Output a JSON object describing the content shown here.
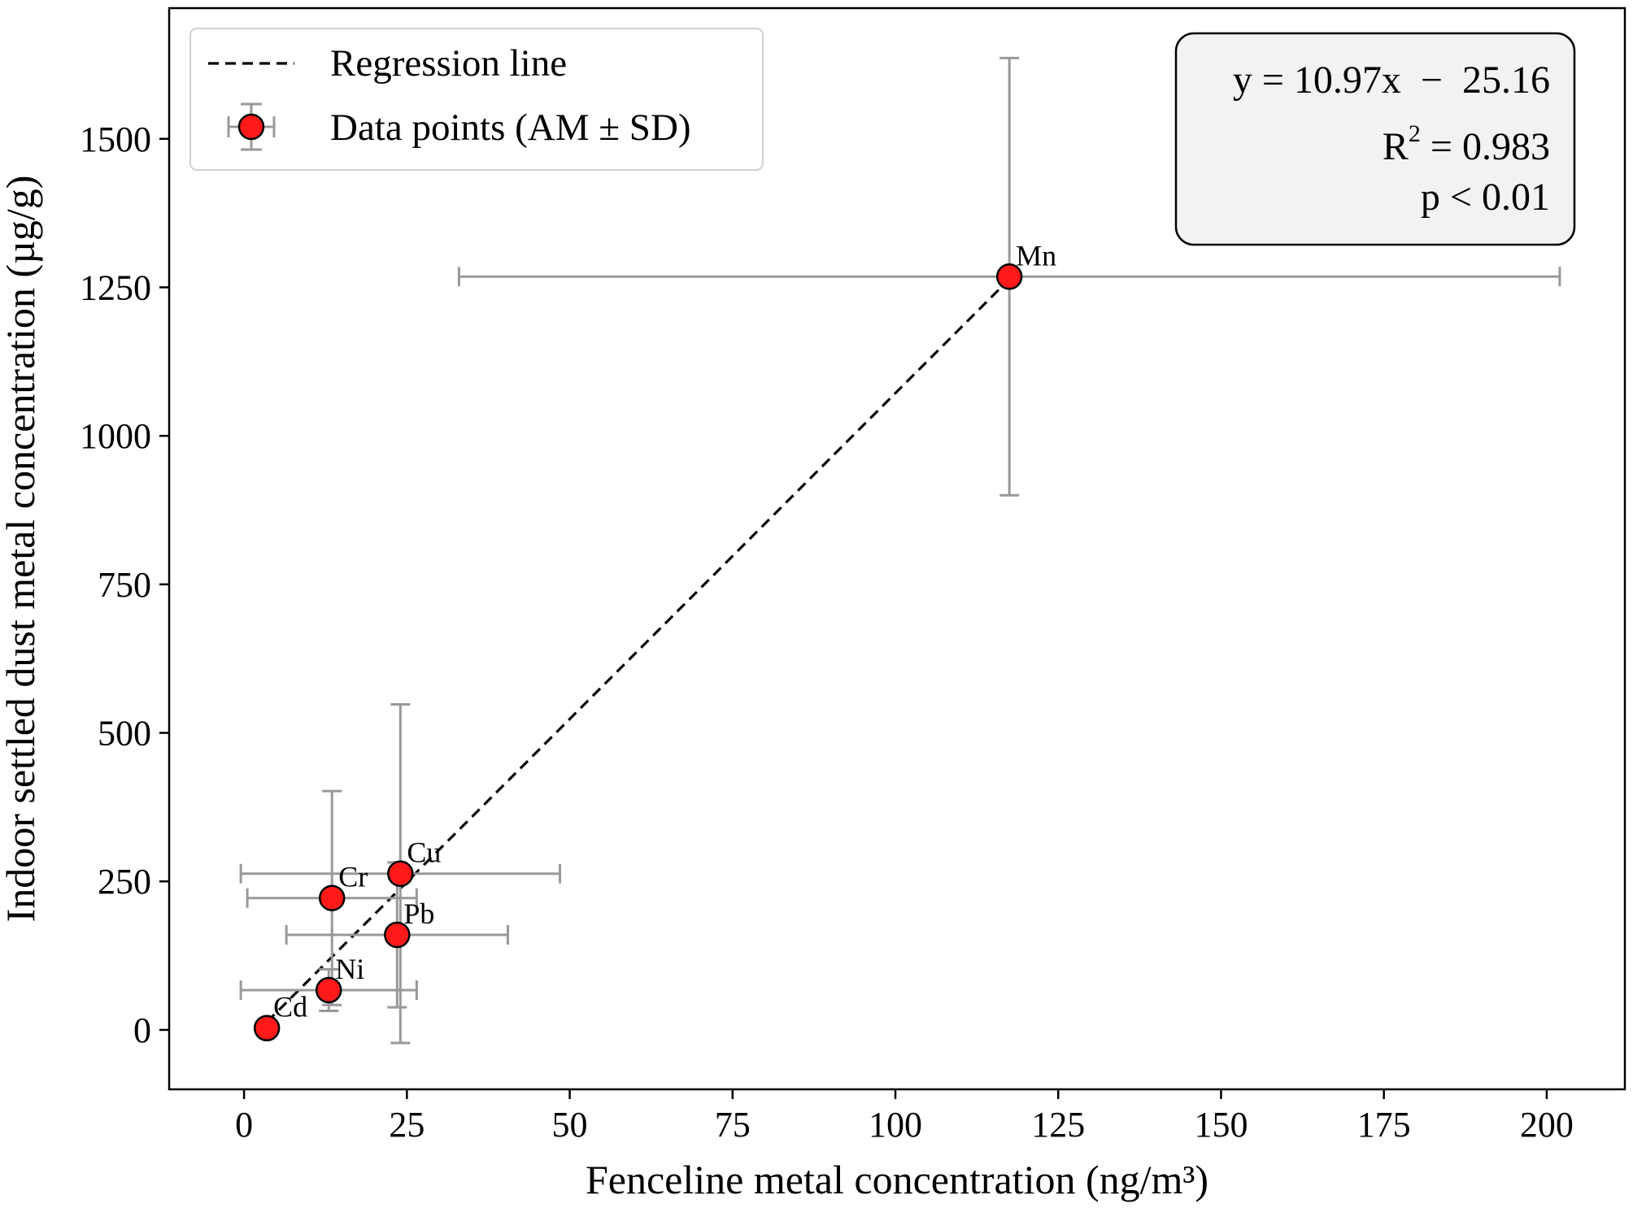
{
  "chart_data": {
    "type": "scatter",
    "xlabel": "Fenceline metal concentration (ng/m³)",
    "ylabel": "Indoor settled dust metal concentration (µg/g)",
    "xlim": [
      -11.5,
      212
    ],
    "ylim": [
      -100,
      1720
    ],
    "xticks": [
      0,
      25,
      50,
      75,
      100,
      125,
      150,
      175,
      200
    ],
    "yticks": [
      0,
      250,
      500,
      750,
      1000,
      1250,
      1500
    ],
    "grid": false,
    "colors": {
      "marker_fill": "#ff1a1a",
      "marker_edge": "#000000",
      "errorbar": "#999999",
      "regression": "#000000",
      "equation_box_fill": "#f2f2f2"
    },
    "legend": {
      "placement": "top-left",
      "entries": [
        {
          "label": "Regression line",
          "kind": "dashed-line"
        },
        {
          "label": "Data points (AM ± SD)",
          "kind": "errorbar-marker"
        }
      ]
    },
    "series": [
      {
        "name": "Data points (AM ± SD)",
        "points": [
          {
            "label": "Cd",
            "x": 3.5,
            "y": 3,
            "xerr": 0,
            "yerr": 0
          },
          {
            "label": "Ni",
            "x": 13,
            "y": 67,
            "xerr": 13.5,
            "yerr": 35
          },
          {
            "label": "Cr",
            "x": 13.5,
            "y": 222,
            "xerr": 13,
            "yerr": 180
          },
          {
            "label": "Pb",
            "x": 23.5,
            "y": 160,
            "xerr": 17,
            "yerr": 122
          },
          {
            "label": "Cu",
            "x": 24,
            "y": 263,
            "xerr": 24.5,
            "yerr": 285
          },
          {
            "label": "Mn",
            "x": 117.5,
            "y": 1268,
            "xerr": 84.5,
            "yerr": 368
          }
        ]
      }
    ],
    "regression": {
      "label": "Regression line",
      "slope": 10.97,
      "intercept": -25.16,
      "x_range": [
        3.5,
        117.5
      ]
    },
    "annotation": {
      "placement": "top-right",
      "equation": "y = 10.97x  −  25.16",
      "r2_prefix": "R",
      "r2_superscript": "2",
      "r2_value": " = 0.983",
      "p_text": "p < 0.01"
    }
  }
}
